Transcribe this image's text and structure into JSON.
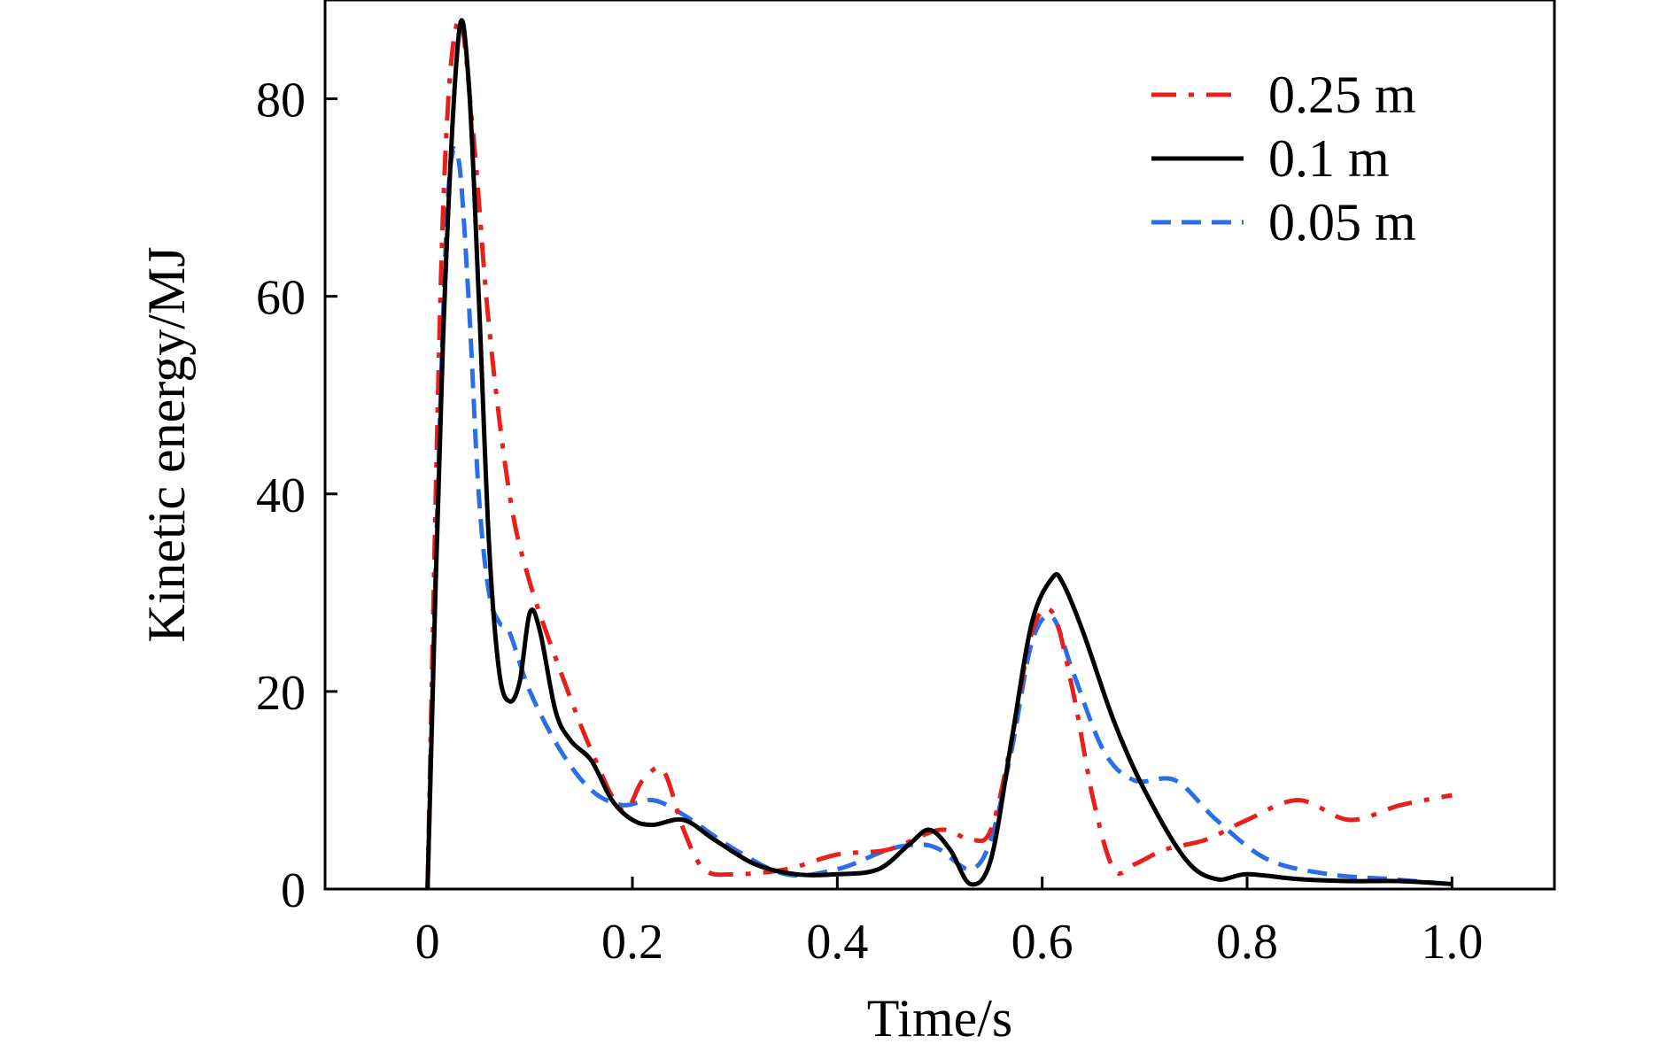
{
  "chart_data": {
    "type": "line",
    "title": "",
    "xlabel": "Time/s",
    "ylabel": "Kinetic energy/MJ",
    "xlim": [
      -0.1,
      1.1
    ],
    "ylim": [
      0,
      90
    ],
    "xticks": [
      0,
      0.2,
      0.4,
      0.6,
      0.8,
      1.0
    ],
    "xtick_labels": [
      "0",
      "0.2",
      "0.4",
      "0.6",
      "0.8",
      "1.0"
    ],
    "yticks": [
      0,
      20,
      40,
      60,
      80
    ],
    "ytick_labels": [
      "0",
      "20",
      "40",
      "60",
      "80"
    ],
    "grid": false,
    "legend_position": "top-right",
    "series": [
      {
        "name": "0.25 m",
        "color": "#e8201c",
        "style": "dash-dot",
        "x": [
          0,
          0.015,
          0.03,
          0.045,
          0.06,
          0.08,
          0.1,
          0.13,
          0.16,
          0.19,
          0.21,
          0.23,
          0.25,
          0.27,
          0.3,
          0.35,
          0.4,
          0.45,
          0.5,
          0.53,
          0.55,
          0.57,
          0.59,
          0.61,
          0.63,
          0.65,
          0.67,
          0.69,
          0.72,
          0.76,
          0.8,
          0.85,
          0.9,
          0.95,
          1.0
        ],
        "y": [
          0,
          68,
          88,
          76,
          57,
          40,
          31,
          22,
          14,
          8,
          11,
          12,
          6,
          2,
          1.5,
          2,
          3.5,
          4,
          6,
          5,
          6,
          15,
          26,
          28,
          20,
          9,
          2,
          2.5,
          4,
          5,
          7,
          9,
          7,
          8.5,
          9.5
        ]
      },
      {
        "name": "0.1 m",
        "color": "#000000",
        "style": "solid",
        "x": [
          0,
          0.015,
          0.03,
          0.04,
          0.05,
          0.06,
          0.07,
          0.08,
          0.09,
          0.1,
          0.11,
          0.125,
          0.14,
          0.16,
          0.18,
          0.2,
          0.22,
          0.25,
          0.28,
          0.32,
          0.36,
          0.4,
          0.44,
          0.47,
          0.49,
          0.51,
          0.53,
          0.55,
          0.57,
          0.59,
          0.61,
          0.62,
          0.64,
          0.67,
          0.7,
          0.74,
          0.77,
          0.8,
          0.85,
          0.9,
          0.95,
          1.0
        ],
        "y": [
          0,
          55,
          86,
          82,
          60,
          35,
          22,
          19,
          21,
          28,
          26,
          18,
          15,
          13,
          9,
          7,
          6.5,
          7,
          5,
          2.5,
          1.5,
          1.5,
          2,
          4.5,
          6,
          4,
          0.5,
          3,
          15,
          27,
          31.5,
          31,
          26,
          17,
          10,
          3,
          1,
          1.5,
          1,
          0.8,
          0.8,
          0.5
        ]
      },
      {
        "name": "0.05 m",
        "color": "#2a6ee8",
        "style": "dashed",
        "x": [
          0,
          0.01,
          0.02,
          0.03,
          0.04,
          0.05,
          0.06,
          0.07,
          0.08,
          0.1,
          0.13,
          0.16,
          0.19,
          0.22,
          0.25,
          0.3,
          0.35,
          0.4,
          0.45,
          0.48,
          0.5,
          0.53,
          0.55,
          0.57,
          0.59,
          0.61,
          0.63,
          0.66,
          0.69,
          0.73,
          0.77,
          0.82,
          0.88,
          0.94,
          1.0
        ],
        "y": [
          0,
          40,
          70,
          74,
          60,
          40,
          30,
          27,
          26,
          20,
          14,
          10,
          8.5,
          9,
          7.5,
          4,
          1.5,
          2,
          4,
          4.5,
          4,
          2,
          5,
          14,
          25,
          27.5,
          22,
          14,
          11,
          11,
          7,
          3,
          1.5,
          1,
          0.5
        ]
      }
    ]
  }
}
